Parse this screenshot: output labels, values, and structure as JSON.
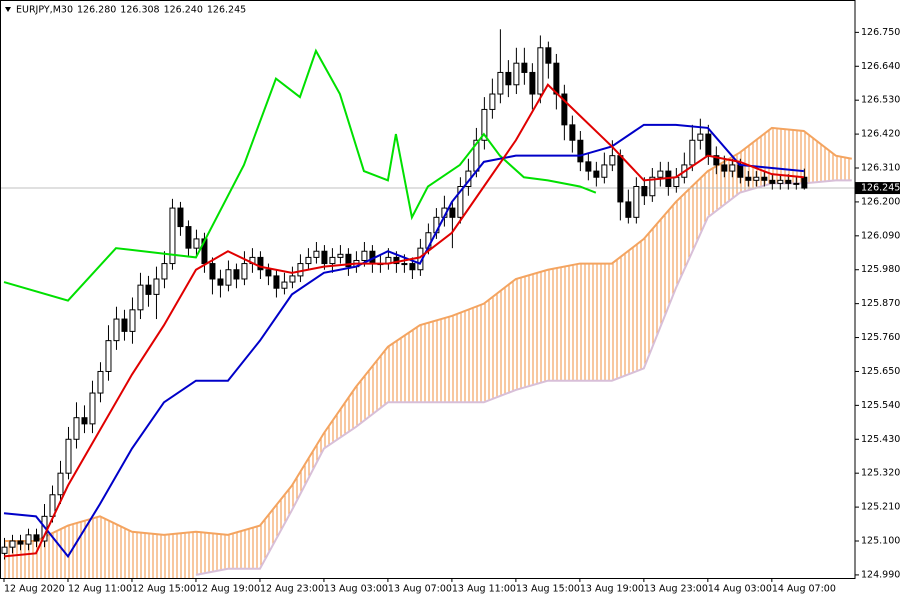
{
  "chart_data": {
    "type": "candlestick",
    "header": [
      "EURJPY,M30",
      {
        "value": 126.28,
        "label": "126.280"
      },
      {
        "value": 126.308,
        "label": "126.308"
      },
      {
        "value": 126.24,
        "label": "126.240"
      },
      {
        "value": 126.245,
        "label": "126.245"
      }
    ],
    "last_price": {
      "value": 126.245,
      "label": "126.245"
    },
    "xlim": [
      -0.5,
      106.4
    ],
    "ylim": [
      124.98,
      126.855
    ],
    "yticks": [
      {
        "value": 126.75,
        "label": "126.750"
      },
      {
        "value": 126.64,
        "label": "126.640"
      },
      {
        "value": 126.53,
        "label": "126.530"
      },
      {
        "value": 126.42,
        "label": "126.420"
      },
      {
        "value": 126.31,
        "label": "126.310"
      },
      {
        "value": 126.2,
        "label": "126.200"
      },
      {
        "value": 126.09,
        "label": "126.090"
      },
      {
        "value": 125.98,
        "label": "125.980"
      },
      {
        "value": 125.87,
        "label": "125.870"
      },
      {
        "value": 125.76,
        "label": "125.760"
      },
      {
        "value": 125.65,
        "label": "125.650"
      },
      {
        "value": 125.54,
        "label": "125.540"
      },
      {
        "value": 125.43,
        "label": "125.430"
      },
      {
        "value": 125.32,
        "label": "125.320"
      },
      {
        "value": 125.21,
        "label": "125.210"
      },
      {
        "value": 125.1,
        "label": "125.100"
      },
      {
        "value": 124.99,
        "label": "124.990"
      }
    ],
    "xticks": [
      {
        "value": 0,
        "label": "12 Aug 2020"
      },
      {
        "value": 8,
        "label": "12 Aug 11:00"
      },
      {
        "value": 16,
        "label": "12 Aug 15:00"
      },
      {
        "value": 24,
        "label": "12 Aug 19:00"
      },
      {
        "value": 32,
        "label": "12 Aug 23:00"
      },
      {
        "value": 40,
        "label": "13 Aug 03:00"
      },
      {
        "value": 48,
        "label": "13 Aug 07:00"
      },
      {
        "value": 56,
        "label": "13 Aug 11:00"
      },
      {
        "value": 64,
        "label": "13 Aug 15:00"
      },
      {
        "value": 72,
        "label": "13 Aug 19:00"
      },
      {
        "value": 80,
        "label": "13 Aug 23:00"
      },
      {
        "value": 88,
        "label": "14 Aug 03:00"
      },
      {
        "value": 96,
        "label": "14 Aug 07:00"
      }
    ],
    "ohlc": [
      [
        125.06,
        125.11,
        125.04,
        125.08
      ],
      [
        125.08,
        125.12,
        125.06,
        125.1
      ],
      [
        125.1,
        125.12,
        125.07,
        125.09
      ],
      [
        125.09,
        125.14,
        125.07,
        125.12
      ],
      [
        125.12,
        125.14,
        125.08,
        125.1
      ],
      [
        125.1,
        125.22,
        125.08,
        125.18
      ],
      [
        125.18,
        125.28,
        125.16,
        125.25
      ],
      [
        125.25,
        125.36,
        125.22,
        125.32
      ],
      [
        125.32,
        125.47,
        125.3,
        125.43
      ],
      [
        125.43,
        125.55,
        125.4,
        125.5
      ],
      [
        125.5,
        125.54,
        125.45,
        125.48
      ],
      [
        125.48,
        125.62,
        125.45,
        125.58
      ],
      [
        125.58,
        125.68,
        125.55,
        125.65
      ],
      [
        125.65,
        125.8,
        125.62,
        125.75
      ],
      [
        125.75,
        125.86,
        125.72,
        125.82
      ],
      [
        125.82,
        125.85,
        125.75,
        125.78
      ],
      [
        125.78,
        125.89,
        125.74,
        125.85
      ],
      [
        125.85,
        125.97,
        125.82,
        125.93
      ],
      [
        125.93,
        125.96,
        125.86,
        125.9
      ],
      [
        125.9,
        125.99,
        125.82,
        125.95
      ],
      [
        125.95,
        126.04,
        125.92,
        126.0
      ],
      [
        126.0,
        126.21,
        125.98,
        126.18
      ],
      [
        126.18,
        126.2,
        126.09,
        126.12
      ],
      [
        126.12,
        126.14,
        126.02,
        126.05
      ],
      [
        126.05,
        126.11,
        126.02,
        126.08
      ],
      [
        126.08,
        126.1,
        125.97,
        126.0
      ],
      [
        126.0,
        126.02,
        125.9,
        125.95
      ],
      [
        125.95,
        125.98,
        125.89,
        125.93
      ],
      [
        125.93,
        126.01,
        125.91,
        125.98
      ],
      [
        125.98,
        126.0,
        125.92,
        125.95
      ],
      [
        125.95,
        126.04,
        125.93,
        126.0
      ],
      [
        126.0,
        126.05,
        125.97,
        126.02
      ],
      [
        126.02,
        126.04,
        125.95,
        125.98
      ],
      [
        125.98,
        126.0,
        125.93,
        125.96
      ],
      [
        125.96,
        125.98,
        125.89,
        125.92
      ],
      [
        125.92,
        125.97,
        125.9,
        125.94
      ],
      [
        125.94,
        125.99,
        125.92,
        125.96
      ],
      [
        125.96,
        126.03,
        125.94,
        126.0
      ],
      [
        126.0,
        126.05,
        125.98,
        126.02
      ],
      [
        126.02,
        126.07,
        126.0,
        126.04
      ],
      [
        126.04,
        126.06,
        125.98,
        126.0
      ],
      [
        126.0,
        126.05,
        125.97,
        126.02
      ],
      [
        126.02,
        126.06,
        126.0,
        126.03
      ],
      [
        126.03,
        126.05,
        125.96,
        125.99
      ],
      [
        125.99,
        126.04,
        125.97,
        126.01
      ],
      [
        126.01,
        126.07,
        125.99,
        126.04
      ],
      [
        126.04,
        126.06,
        125.97,
        126.0
      ],
      [
        126.0,
        126.03,
        125.97,
        126.0
      ],
      [
        126.0,
        126.05,
        125.98,
        126.02
      ],
      [
        126.02,
        126.04,
        125.97,
        126.0
      ],
      [
        126.0,
        126.03,
        125.97,
        126.0
      ],
      [
        126.0,
        126.02,
        125.95,
        125.98
      ],
      [
        125.98,
        126.08,
        125.96,
        126.05
      ],
      [
        126.05,
        126.13,
        126.03,
        126.1
      ],
      [
        126.1,
        126.18,
        126.08,
        126.15
      ],
      [
        126.15,
        126.22,
        126.12,
        126.18
      ],
      [
        126.18,
        126.2,
        126.05,
        126.15
      ],
      [
        126.15,
        126.28,
        126.13,
        126.25
      ],
      [
        126.25,
        126.34,
        126.22,
        126.3
      ],
      [
        126.3,
        126.44,
        126.28,
        126.4
      ],
      [
        126.4,
        126.54,
        126.37,
        126.5
      ],
      [
        126.5,
        126.6,
        126.47,
        126.55
      ],
      [
        126.55,
        126.76,
        126.52,
        126.62
      ],
      [
        126.62,
        126.66,
        126.54,
        126.58
      ],
      [
        126.58,
        126.7,
        126.55,
        126.65
      ],
      [
        126.65,
        126.7,
        126.58,
        126.62
      ],
      [
        126.62,
        126.65,
        126.5,
        126.55
      ],
      [
        126.55,
        126.74,
        126.52,
        126.7
      ],
      [
        126.7,
        126.72,
        126.6,
        126.65
      ],
      [
        126.65,
        126.68,
        126.5,
        126.55
      ],
      [
        126.55,
        126.58,
        126.4,
        126.45
      ],
      [
        126.45,
        126.48,
        126.36,
        126.4
      ],
      [
        126.4,
        126.43,
        126.3,
        126.33
      ],
      [
        126.33,
        126.36,
        126.27,
        126.3
      ],
      [
        126.3,
        126.33,
        126.25,
        126.28
      ],
      [
        126.28,
        126.36,
        126.26,
        126.32
      ],
      [
        126.32,
        126.4,
        126.3,
        126.35
      ],
      [
        126.35,
        126.37,
        126.14,
        126.2
      ],
      [
        126.2,
        126.24,
        126.13,
        126.15
      ],
      [
        126.15,
        126.28,
        126.13,
        126.25
      ],
      [
        126.25,
        126.28,
        126.19,
        126.22
      ],
      [
        126.22,
        126.31,
        126.2,
        126.28
      ],
      [
        126.28,
        126.33,
        126.25,
        126.3
      ],
      [
        126.3,
        126.33,
        126.22,
        126.25
      ],
      [
        126.25,
        126.31,
        126.23,
        126.28
      ],
      [
        126.28,
        126.36,
        126.26,
        126.32
      ],
      [
        126.32,
        126.45,
        126.3,
        126.4
      ],
      [
        126.4,
        126.47,
        126.37,
        126.42
      ],
      [
        126.42,
        126.45,
        126.32,
        126.35
      ],
      [
        126.35,
        126.38,
        126.29,
        126.32
      ],
      [
        126.32,
        126.35,
        126.28,
        126.3
      ],
      [
        126.3,
        126.34,
        126.28,
        126.32
      ],
      [
        126.32,
        126.34,
        126.26,
        126.28
      ],
      [
        126.28,
        126.3,
        126.25,
        126.27
      ],
      [
        126.27,
        126.3,
        126.25,
        126.28
      ],
      [
        126.28,
        126.3,
        126.25,
        126.27
      ],
      [
        126.27,
        126.29,
        126.24,
        126.26
      ],
      [
        126.26,
        126.29,
        126.24,
        126.27
      ],
      [
        126.27,
        126.29,
        126.24,
        126.26
      ],
      [
        126.26,
        126.28,
        126.24,
        126.26
      ],
      [
        126.28,
        126.308,
        126.24,
        126.245
      ]
    ],
    "cloud": {
      "color": "#f4a460",
      "a": {
        "color": "#f4a460",
        "x": [
          0,
          4,
          8,
          12,
          16,
          20,
          24,
          28,
          32,
          36,
          40,
          44,
          48,
          52,
          56,
          60,
          64,
          68,
          72,
          76,
          80,
          84,
          88,
          92,
          96,
          100,
          104,
          106
        ],
        "values": [
          125.1,
          125.1,
          125.15,
          125.18,
          125.13,
          125.12,
          125.13,
          125.12,
          125.15,
          125.28,
          125.45,
          125.6,
          125.73,
          125.8,
          125.83,
          125.87,
          125.95,
          125.98,
          126.0,
          126.0,
          126.08,
          126.2,
          126.3,
          126.36,
          126.44,
          126.43,
          126.35,
          126.34
        ]
      },
      "b": {
        "color": "#d8bfd8",
        "x": [
          24,
          28,
          32,
          36,
          40,
          44,
          48,
          52,
          56,
          60,
          64,
          68,
          72,
          76,
          80,
          84,
          88,
          92,
          96,
          100,
          104,
          106
        ],
        "values": [
          124.99,
          125.01,
          125.01,
          125.2,
          125.4,
          125.47,
          125.55,
          125.55,
          125.55,
          125.55,
          125.59,
          125.62,
          125.62,
          125.62,
          125.66,
          125.92,
          126.15,
          126.23,
          126.26,
          126.26,
          126.27,
          126.27
        ]
      }
    },
    "lines": [
      {
        "color": "#00e000",
        "x": [
          0,
          8,
          14,
          24,
          30,
          34,
          37,
          39,
          42,
          45,
          48,
          49,
          51,
          53,
          57,
          60,
          62,
          65,
          68,
          72,
          74
        ],
        "values": [
          125.94,
          125.88,
          126.05,
          126.02,
          126.32,
          126.6,
          126.54,
          126.69,
          126.55,
          126.3,
          126.27,
          126.42,
          126.15,
          126.25,
          126.32,
          126.42,
          126.35,
          126.28,
          126.27,
          126.25,
          126.23
        ]
      },
      {
        "color": "#0000c8",
        "x": [
          0,
          4,
          8,
          12,
          16,
          20,
          24,
          28,
          32,
          36,
          40,
          44,
          48,
          52,
          56,
          60,
          64,
          68,
          72,
          76,
          80,
          84,
          88,
          92,
          96,
          100
        ],
        "values": [
          125.19,
          125.18,
          125.05,
          125.22,
          125.4,
          125.55,
          125.62,
          125.62,
          125.75,
          125.9,
          125.97,
          125.99,
          126.04,
          126.0,
          126.2,
          126.33,
          126.35,
          126.35,
          126.35,
          126.38,
          126.45,
          126.45,
          126.44,
          126.32,
          126.31,
          126.3
        ]
      },
      {
        "color": "#e00000",
        "x": [
          0,
          4,
          8,
          12,
          16,
          20,
          24,
          28,
          32,
          36,
          40,
          44,
          48,
          52,
          56,
          60,
          64,
          68,
          72,
          76,
          80,
          84,
          88,
          92,
          96,
          100
        ],
        "values": [
          125.05,
          125.06,
          125.28,
          125.46,
          125.64,
          125.8,
          125.98,
          126.04,
          125.99,
          125.97,
          125.99,
          126.0,
          126.0,
          126.02,
          126.1,
          126.25,
          126.4,
          126.58,
          126.48,
          126.38,
          126.27,
          126.28,
          126.35,
          126.33,
          126.29,
          126.28
        ]
      }
    ]
  }
}
